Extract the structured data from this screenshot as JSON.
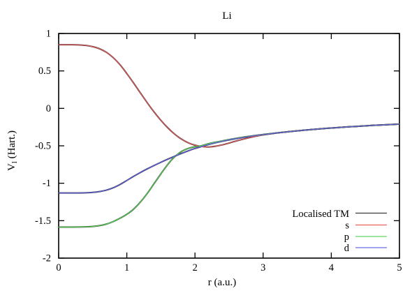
{
  "chart_data": {
    "type": "line",
    "title": "Li",
    "xlabel": "r (a.u.)",
    "ylabel": "V_l (Hart.)",
    "ylabel_parts": {
      "base": "V",
      "sub": "l",
      "rest": " (Hart.)"
    },
    "xlim": [
      0,
      5
    ],
    "ylim": [
      -2,
      1
    ],
    "xticks": [
      0,
      1,
      2,
      3,
      4,
      5
    ],
    "yticks": [
      -2,
      -1.5,
      -1,
      -0.5,
      0,
      0.5,
      1
    ],
    "grid": false,
    "frame_color": "#000000",
    "legend": {
      "position": "inside-bottom-right",
      "entries": [
        {
          "label": "Localised TM",
          "color": "#3a3a3a"
        },
        {
          "label": "s",
          "color": "#e86060"
        },
        {
          "label": "p",
          "color": "#63d663"
        },
        {
          "label": "d",
          "color": "#6a6ae4"
        }
      ]
    },
    "x": [
      0,
      0.1,
      0.2,
      0.3,
      0.4,
      0.5,
      0.6,
      0.7,
      0.8,
      0.9,
      1.0,
      1.1,
      1.2,
      1.3,
      1.4,
      1.5,
      1.6,
      1.7,
      1.8,
      1.9,
      2.0,
      2.1,
      2.2,
      2.3,
      2.4,
      2.5,
      2.6,
      2.7,
      2.8,
      2.9,
      3.0,
      3.2,
      3.4,
      3.6,
      3.8,
      4.0,
      4.2,
      4.4,
      4.6,
      4.8,
      5.0
    ],
    "series": [
      {
        "name": "Localised TM",
        "color": "#2a2a2a",
        "note": "three black curves drawn beneath the s, p and d curves; visually coincident with them"
      },
      {
        "name": "s",
        "color": "#e05b5b",
        "values": [
          0.85,
          0.85,
          0.85,
          0.847,
          0.84,
          0.824,
          0.796,
          0.749,
          0.678,
          0.583,
          0.465,
          0.338,
          0.205,
          0.075,
          -0.048,
          -0.16,
          -0.259,
          -0.343,
          -0.41,
          -0.459,
          -0.492,
          -0.51,
          -0.516,
          -0.506,
          -0.488,
          -0.463,
          -0.437,
          -0.413,
          -0.391,
          -0.371,
          -0.354,
          -0.329,
          -0.309,
          -0.292,
          -0.276,
          -0.262,
          -0.25,
          -0.239,
          -0.228,
          -0.219,
          -0.21
        ]
      },
      {
        "name": "p",
        "color": "#57d057",
        "values": [
          -1.585,
          -1.585,
          -1.585,
          -1.584,
          -1.582,
          -1.577,
          -1.566,
          -1.546,
          -1.512,
          -1.468,
          -1.415,
          -1.345,
          -1.25,
          -1.135,
          -1.005,
          -0.875,
          -0.75,
          -0.648,
          -0.578,
          -0.536,
          -0.512,
          -0.498,
          -0.472,
          -0.452,
          -0.434,
          -0.417,
          -0.401,
          -0.386,
          -0.373,
          -0.36,
          -0.349,
          -0.328,
          -0.309,
          -0.292,
          -0.276,
          -0.262,
          -0.25,
          -0.239,
          -0.228,
          -0.219,
          -0.21
        ]
      },
      {
        "name": "d",
        "color": "#6060dd",
        "values": [
          -1.13,
          -1.13,
          -1.13,
          -1.13,
          -1.128,
          -1.122,
          -1.111,
          -1.092,
          -1.061,
          -1.017,
          -0.963,
          -0.908,
          -0.856,
          -0.808,
          -0.763,
          -0.72,
          -0.679,
          -0.64,
          -0.603,
          -0.568,
          -0.536,
          -0.508,
          -0.483,
          -0.46,
          -0.44,
          -0.422,
          -0.405,
          -0.39,
          -0.376,
          -0.363,
          -0.351,
          -0.329,
          -0.309,
          -0.292,
          -0.276,
          -0.262,
          -0.25,
          -0.239,
          -0.228,
          -0.219,
          -0.21
        ]
      }
    ]
  }
}
